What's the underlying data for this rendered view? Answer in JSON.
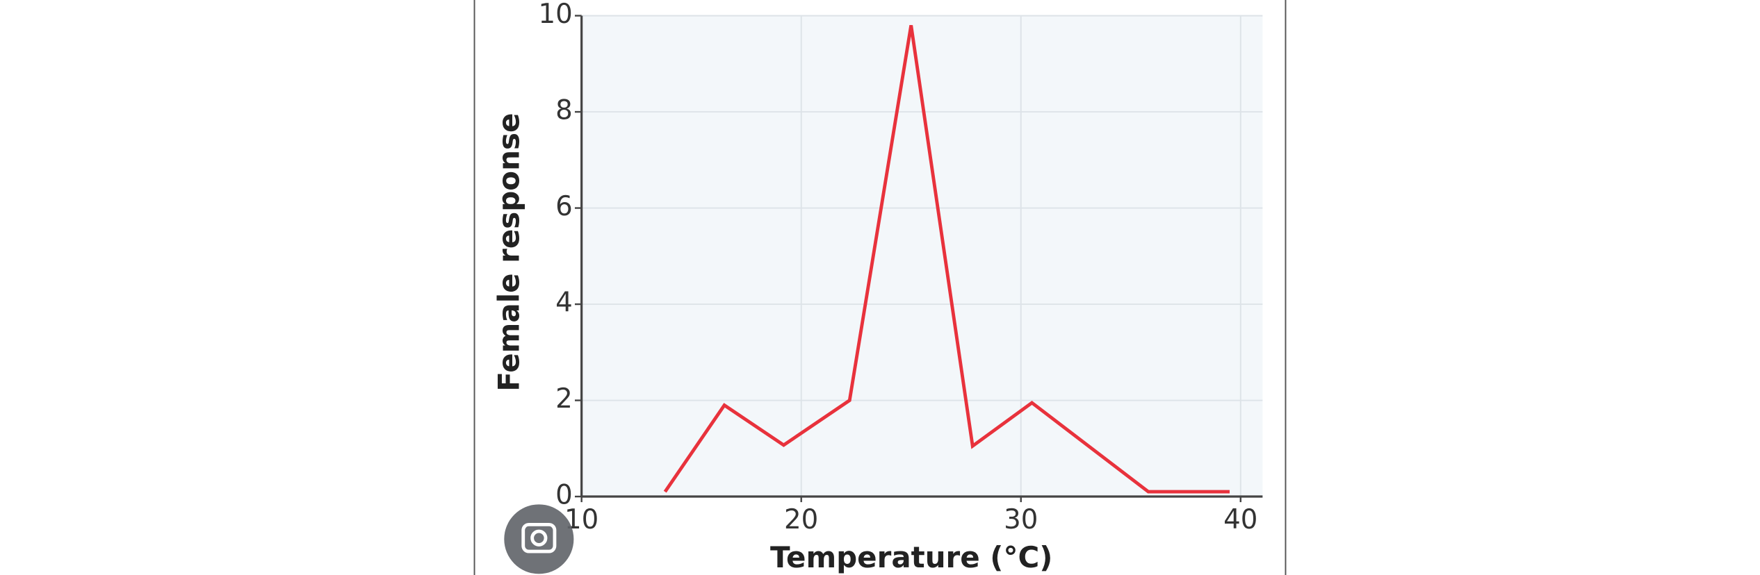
{
  "chart_data": {
    "type": "line",
    "x_label": "Temperature (°C)",
    "y_label": "Female response",
    "x": [
      13.8,
      16.5,
      19.2,
      22.2,
      25,
      27.8,
      30.5,
      35.8,
      39.5
    ],
    "series": [
      {
        "color": "#e8323c",
        "values": [
          0.1,
          1.9,
          1.07,
          2,
          9.8,
          1.05,
          1.95,
          0.1,
          0.1
        ]
      }
    ],
    "xlim": [
      10,
      41
    ],
    "ylim": [
      0,
      10
    ],
    "xticks": [
      10,
      20,
      30,
      40
    ],
    "yticks": [
      0,
      2,
      4,
      6,
      8,
      10
    ],
    "grid": true
  }
}
